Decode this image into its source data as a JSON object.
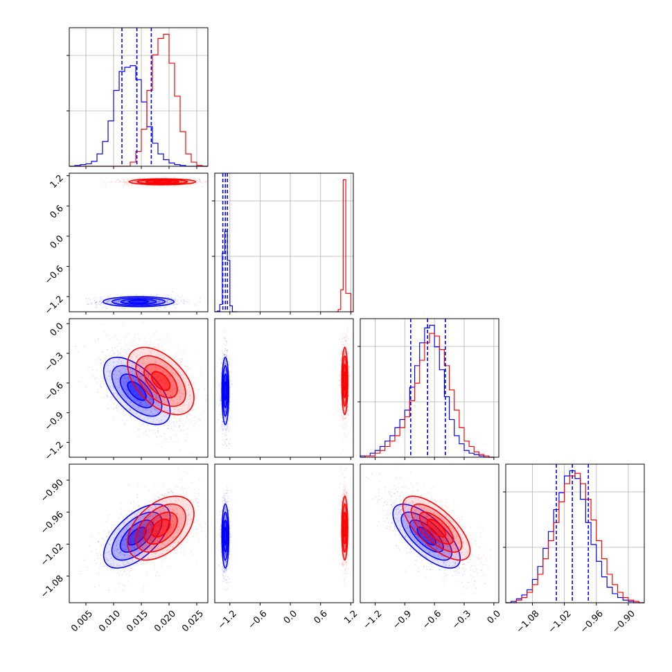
{
  "chart_data": {
    "type": "corner",
    "colors": {
      "blue": "#0000ff",
      "red": "#ff0000"
    },
    "grid": true,
    "params": [
      {
        "range": [
          0.002,
          0.027
        ],
        "ticks": [
          0.005,
          0.01,
          0.015,
          0.02,
          0.025
        ],
        "tick_labels": [
          "0.005",
          "0.010",
          "0.015",
          "0.020",
          "0.025"
        ]
      },
      {
        "range": [
          -1.5,
          1.25
        ],
        "ticks": [
          -1.2,
          -0.6,
          0.0,
          0.6,
          1.2
        ],
        "tick_labels": [
          "−1.2",
          "−0.6",
          "0.0",
          "0.6",
          "1.2"
        ]
      },
      {
        "range": [
          -1.35,
          0.05
        ],
        "ticks": [
          -1.2,
          -0.9,
          -0.6,
          -0.3,
          0.0
        ],
        "tick_labels": [
          "−1.2",
          "−0.9",
          "−0.6",
          "−0.3",
          "0.0"
        ]
      },
      {
        "range": [
          -1.13,
          -0.87
        ],
        "ticks": [
          -1.08,
          -1.02,
          -0.96,
          -0.9
        ],
        "tick_labels": [
          "−1.08",
          "−1.02",
          "−0.96",
          "−0.90"
        ]
      }
    ],
    "histograms": [
      {
        "blue": {
          "edges": [
            0.002,
            0.003,
            0.004,
            0.005,
            0.006,
            0.007,
            0.008,
            0.009,
            0.01,
            0.011,
            0.012,
            0.013,
            0.014,
            0.015,
            0.016,
            0.017,
            0.018,
            0.019,
            0.02,
            0.021,
            0.022,
            0.023,
            0.024,
            0.025,
            0.026,
            0.027
          ],
          "counts": [
            0,
            1,
            2,
            3,
            6,
            15,
            30,
            55,
            92,
            115,
            120,
            122,
            105,
            78,
            48,
            28,
            15,
            8,
            4,
            2,
            1,
            0,
            0,
            0,
            0
          ]
        },
        "red": {
          "edges": [
            0.002,
            0.003,
            0.004,
            0.005,
            0.006,
            0.007,
            0.008,
            0.009,
            0.01,
            0.011,
            0.012,
            0.013,
            0.014,
            0.015,
            0.016,
            0.017,
            0.018,
            0.019,
            0.02,
            0.021,
            0.022,
            0.023,
            0.024,
            0.025,
            0.026,
            0.027
          ],
          "counts": [
            0,
            0,
            0,
            0,
            0,
            0,
            0,
            0,
            0,
            0,
            0,
            5,
            18,
            45,
            92,
            135,
            155,
            160,
            125,
            85,
            42,
            15,
            5,
            1,
            0
          ]
        },
        "quantiles": [
          0.0115,
          0.0142,
          0.0168
        ]
      },
      {
        "blue": {
          "edges": [
            -1.5,
            -1.45,
            -1.4,
            -1.35,
            -1.3,
            -1.25,
            -1.2,
            -1.15,
            -1.1,
            -1.05
          ],
          "counts": [
            0,
            1,
            10,
            80,
            110,
            70,
            8,
            0,
            0
          ]
        },
        "red": {
          "edges": [
            0.9,
            0.95,
            1.0,
            1.05,
            1.1,
            1.15,
            1.2,
            1.25
          ],
          "counts": [
            0,
            3,
            30,
            180,
            25,
            25,
            0
          ]
        },
        "quantiles": [
          -1.34,
          -1.29,
          -1.25
        ]
      },
      {
        "blue": {
          "edges": [
            -1.35,
            -1.3,
            -1.25,
            -1.2,
            -1.15,
            -1.1,
            -1.05,
            -1.0,
            -0.95,
            -0.9,
            -0.85,
            -0.8,
            -0.75,
            -0.7,
            -0.65,
            -0.6,
            -0.55,
            -0.5,
            -0.45,
            -0.4,
            -0.35,
            -0.3,
            -0.25,
            -0.2,
            -0.15,
            -0.1,
            -0.05,
            0.0
          ],
          "counts": [
            1,
            1,
            3,
            5,
            8,
            12,
            16,
            22,
            28,
            35,
            52,
            68,
            85,
            96,
            98,
            82,
            65,
            45,
            28,
            16,
            10,
            5,
            3,
            2,
            1,
            0,
            0
          ]
        },
        "red": {
          "edges": [
            -1.35,
            -1.3,
            -1.25,
            -1.2,
            -1.15,
            -1.1,
            -1.05,
            -1.0,
            -0.95,
            -0.9,
            -0.85,
            -0.8,
            -0.75,
            -0.7,
            -0.65,
            -0.6,
            -0.55,
            -0.5,
            -0.45,
            -0.4,
            -0.35,
            -0.3,
            -0.25,
            -0.2,
            -0.15,
            -0.1,
            -0.05,
            0.0
          ],
          "counts": [
            0,
            1,
            1,
            3,
            5,
            8,
            12,
            16,
            22,
            30,
            42,
            55,
            72,
            85,
            92,
            90,
            80,
            68,
            50,
            35,
            22,
            12,
            8,
            4,
            2,
            1,
            0
          ]
        },
        "quantiles": [
          -0.84,
          -0.67,
          -0.49
        ]
      },
      {
        "blue": {
          "edges": [
            -1.13,
            -1.12,
            -1.11,
            -1.1,
            -1.09,
            -1.08,
            -1.07,
            -1.06,
            -1.05,
            -1.04,
            -1.03,
            -1.02,
            -1.01,
            -1.0,
            -0.99,
            -0.98,
            -0.97,
            -0.96,
            -0.95,
            -0.94,
            -0.93,
            -0.92,
            -0.91,
            -0.9,
            -0.89,
            -0.88,
            -0.87
          ],
          "counts": [
            0,
            1,
            3,
            6,
            10,
            18,
            28,
            42,
            55,
            72,
            85,
            98,
            102,
            96,
            80,
            62,
            45,
            32,
            20,
            12,
            7,
            4,
            2,
            1,
            0,
            0
          ]
        },
        "red": {
          "edges": [
            -1.13,
            -1.12,
            -1.11,
            -1.1,
            -1.09,
            -1.08,
            -1.07,
            -1.06,
            -1.05,
            -1.04,
            -1.03,
            -1.02,
            -1.01,
            -1.0,
            -0.99,
            -0.98,
            -0.97,
            -0.96,
            -0.95,
            -0.94,
            -0.93,
            -0.92,
            -0.91,
            -0.9,
            -0.89,
            -0.88,
            -0.87
          ],
          "counts": [
            0,
            0,
            2,
            4,
            8,
            14,
            22,
            34,
            48,
            62,
            78,
            92,
            98,
            100,
            92,
            80,
            64,
            48,
            34,
            22,
            14,
            8,
            4,
            2,
            1,
            0
          ]
        },
        "quantiles": [
          -1.035,
          -1.005,
          -0.975
        ]
      }
    ],
    "scatter_panels": [
      {
        "x": 0,
        "y": 1,
        "blue": {
          "mean": [
            0.0145,
            -1.3
          ],
          "sd": [
            0.0032,
            0.05
          ],
          "rho": 0.0
        },
        "red": {
          "mean": [
            0.0188,
            1.08
          ],
          "sd": [
            0.003,
            0.03
          ],
          "rho": 0.0
        }
      },
      {
        "x": 0,
        "y": 2,
        "blue": {
          "mean": [
            0.0142,
            -0.68
          ],
          "sd": [
            0.003,
            0.17
          ],
          "rho": -0.6
        },
        "red": {
          "mean": [
            0.0185,
            -0.58
          ],
          "sd": [
            0.003,
            0.17
          ],
          "rho": -0.5
        }
      },
      {
        "x": 1,
        "y": 2,
        "blue": {
          "mean": [
            -1.29,
            -0.68
          ],
          "sd": [
            0.035,
            0.17
          ],
          "rho": 0.0
        },
        "red": {
          "mean": [
            1.08,
            -0.58
          ],
          "sd": [
            0.03,
            0.17
          ],
          "rho": 0.0
        }
      },
      {
        "x": 0,
        "y": 3,
        "blue": {
          "mean": [
            0.0142,
            -1.005
          ],
          "sd": [
            0.003,
            0.03
          ],
          "rho": 0.6
        },
        "red": {
          "mean": [
            0.0185,
            -0.99
          ],
          "sd": [
            0.003,
            0.03
          ],
          "rho": 0.45
        }
      },
      {
        "x": 1,
        "y": 3,
        "blue": {
          "mean": [
            -1.29,
            -1.005
          ],
          "sd": [
            0.035,
            0.03
          ],
          "rho": 0.0
        },
        "red": {
          "mean": [
            1.08,
            -0.99
          ],
          "sd": [
            0.03,
            0.03
          ],
          "rho": 0.0
        }
      },
      {
        "x": 2,
        "y": 3,
        "blue": {
          "mean": [
            -0.68,
            -1.005
          ],
          "sd": [
            0.17,
            0.03
          ],
          "rho": -0.7
        },
        "red": {
          "mean": [
            -0.58,
            -0.99
          ],
          "sd": [
            0.17,
            0.03
          ],
          "rho": -0.7
        }
      }
    ]
  }
}
